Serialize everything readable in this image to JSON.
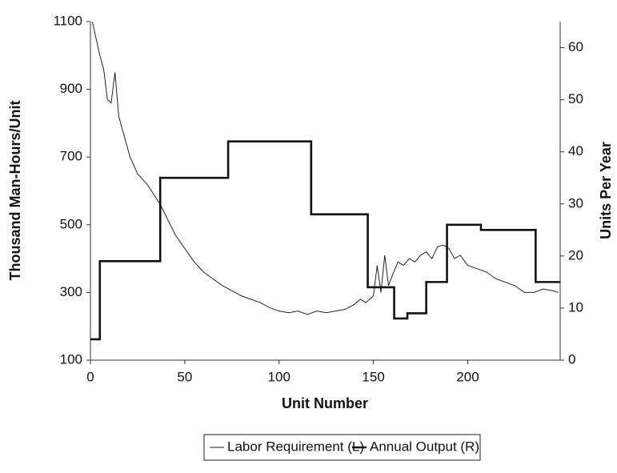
{
  "chart_data": {
    "type": "line",
    "x_label": "Unit Number",
    "y_label": "Thousand Man-Hours/Unit",
    "y2_label": "Units Per Year",
    "xlim": [
      0,
      249
    ],
    "xticks": [
      0,
      50,
      100,
      150,
      200
    ],
    "ylim": [
      100,
      1100
    ],
    "yticks": [
      100,
      300,
      500,
      700,
      900,
      1100
    ],
    "y2lim": [
      0,
      65
    ],
    "y2ticks": [
      0,
      10,
      20,
      30,
      40,
      50,
      60
    ],
    "legend": "bottom",
    "series": [
      {
        "name": "Labor Requirement (L)",
        "color": "#222222",
        "axis": "y",
        "x": [
          1,
          3,
          5,
          7,
          9,
          11,
          13,
          15,
          18,
          21,
          25,
          30,
          37,
          45,
          50,
          55,
          60,
          65,
          70,
          75,
          80,
          85,
          90,
          95,
          100,
          105,
          110,
          115,
          120,
          125,
          130,
          135,
          140,
          143,
          146,
          150,
          152,
          154,
          156,
          158,
          160,
          163,
          166,
          169,
          172,
          175,
          178,
          181,
          184,
          187,
          190,
          193,
          196,
          200,
          205,
          210,
          215,
          220,
          225,
          230,
          235,
          240,
          245,
          248
        ],
        "values": [
          1100,
          1050,
          1000,
          960,
          870,
          860,
          950,
          820,
          760,
          700,
          650,
          620,
          560,
          470,
          430,
          390,
          360,
          340,
          320,
          305,
          290,
          280,
          270,
          255,
          245,
          240,
          245,
          235,
          245,
          240,
          245,
          250,
          265,
          280,
          270,
          290,
          380,
          300,
          410,
          320,
          350,
          390,
          380,
          400,
          390,
          410,
          420,
          400,
          435,
          440,
          430,
          400,
          410,
          380,
          370,
          360,
          340,
          330,
          320,
          300,
          300,
          310,
          305,
          300
        ]
      },
      {
        "name": "Annual Output (R)",
        "color": "#111111",
        "axis": "y2",
        "step": true,
        "x": [
          0,
          5,
          37,
          73,
          117,
          147,
          161,
          168,
          178,
          189,
          207,
          236
        ],
        "values": [
          4,
          19,
          35,
          42,
          28,
          14,
          8,
          9,
          15,
          26,
          25,
          15
        ]
      }
    ]
  }
}
